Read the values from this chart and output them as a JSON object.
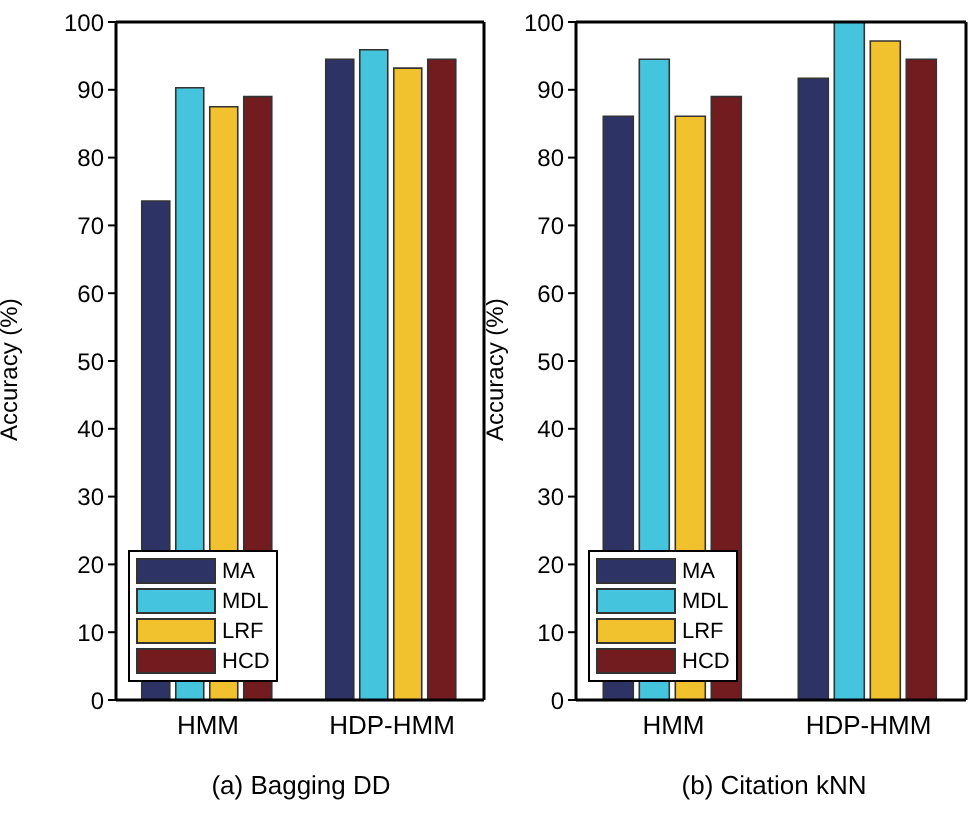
{
  "chart_data": [
    {
      "type": "bar",
      "title": "(a) Bagging DD",
      "ylabel": "Accuracy (%)",
      "categories": [
        "HMM",
        "HDP-HMM"
      ],
      "ylim": [
        0,
        100
      ],
      "yticks": [
        0,
        10,
        20,
        30,
        40,
        50,
        60,
        70,
        80,
        90,
        100
      ],
      "legend": "bottom left",
      "grid": false,
      "series": [
        {
          "name": "MA",
          "color": "#2e3366",
          "values": [
            73.6,
            94.5
          ]
        },
        {
          "name": "MDL",
          "color": "#45c5dd",
          "values": [
            90.3,
            95.9
          ]
        },
        {
          "name": "LRF",
          "color": "#f2c12e",
          "values": [
            87.5,
            93.2
          ]
        },
        {
          "name": "HCD",
          "color": "#721c20",
          "values": [
            89,
            94.5
          ]
        }
      ]
    },
    {
      "type": "bar",
      "title": "(b) Citation kNN",
      "ylabel": "Accuracy (%)",
      "categories": [
        "HMM",
        "HDP-HMM"
      ],
      "ylim": [
        0,
        100
      ],
      "yticks": [
        0,
        10,
        20,
        30,
        40,
        50,
        60,
        70,
        80,
        90,
        100
      ],
      "legend": "bottom left",
      "grid": false,
      "series": [
        {
          "name": "MA",
          "color": "#2e3366",
          "values": [
            86.1,
            91.7
          ]
        },
        {
          "name": "MDL",
          "color": "#45c5dd",
          "values": [
            94.5,
            100
          ]
        },
        {
          "name": "LRF",
          "color": "#f2c12e",
          "values": [
            86.1,
            97.2
          ]
        },
        {
          "name": "HCD",
          "color": "#721c20",
          "values": [
            89,
            94.5
          ]
        }
      ]
    }
  ]
}
